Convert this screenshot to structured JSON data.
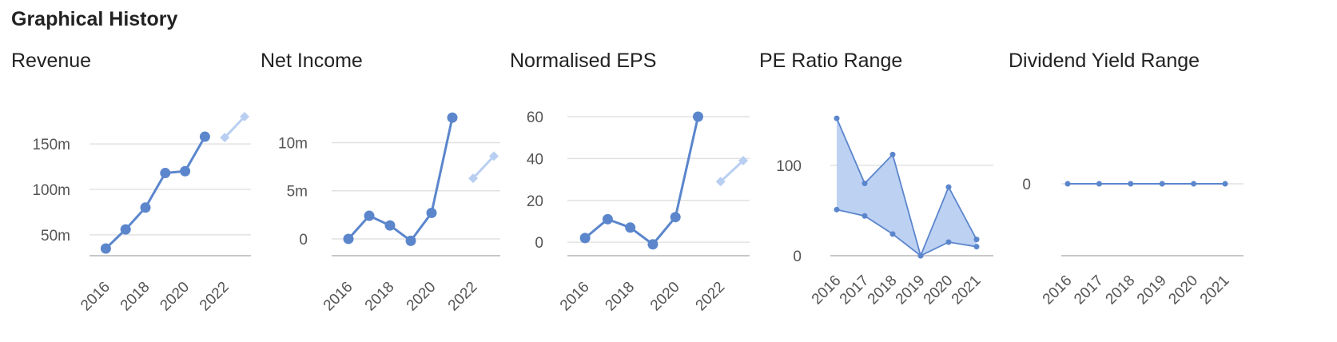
{
  "section_title": "Graphical History",
  "colors": {
    "series": "#5b86cc",
    "forecast": "#b9cff2",
    "area": "#b9cff2",
    "grid": "#e2e2e2",
    "axis": "#c8c8c8"
  },
  "chart_data": [
    {
      "type": "line",
      "title": "Revenue",
      "x_ticks": [
        "2016",
        "2018",
        "2020",
        "2022"
      ],
      "y_ticks": [
        {
          "value": 50,
          "label": "50m"
        },
        {
          "value": 100,
          "label": "100m"
        },
        {
          "value": 150,
          "label": "150m"
        }
      ],
      "ylim": [
        35,
        180
      ],
      "xlim": [
        2015.5,
        2023
      ],
      "series": [
        {
          "x": [
            2016,
            2017,
            2018,
            2019,
            2020,
            2021
          ],
          "values": [
            35,
            56,
            80,
            118,
            120,
            158
          ]
        }
      ],
      "forecast": {
        "x": [
          2022,
          2023
        ],
        "values": [
          157,
          180
        ]
      }
    },
    {
      "type": "line",
      "title": "Net Income",
      "x_ticks": [
        "2016",
        "2018",
        "2020",
        "2022"
      ],
      "y_ticks": [
        {
          "value": 0,
          "label": "0"
        },
        {
          "value": 5,
          "label": "5m"
        },
        {
          "value": 10,
          "label": "10m"
        }
      ],
      "ylim": [
        -1,
        12.7
      ],
      "xlim": [
        2015.5,
        2023
      ],
      "series": [
        {
          "x": [
            2016,
            2017,
            2018,
            2019,
            2020,
            2021
          ],
          "values": [
            0,
            2.4,
            1.4,
            -0.2,
            2.7,
            12.6
          ]
        }
      ],
      "forecast": {
        "x": [
          2022,
          2023
        ],
        "values": [
          6.3,
          8.6
        ]
      }
    },
    {
      "type": "line",
      "title": "Normalised EPS",
      "x_ticks": [
        "2016",
        "2018",
        "2020",
        "2022"
      ],
      "y_ticks": [
        {
          "value": 0,
          "label": "0"
        },
        {
          "value": 20,
          "label": "20"
        },
        {
          "value": 40,
          "label": "40"
        },
        {
          "value": 60,
          "label": "60"
        }
      ],
      "ylim": [
        -3,
        60
      ],
      "xlim": [
        2015.5,
        2023
      ],
      "series": [
        {
          "x": [
            2016,
            2017,
            2018,
            2019,
            2020,
            2021
          ],
          "values": [
            2,
            11,
            7,
            -1,
            12,
            60
          ]
        }
      ],
      "forecast": {
        "x": [
          2022,
          2023
        ],
        "values": [
          29,
          39
        ]
      }
    },
    {
      "type": "area",
      "title": "PE Ratio Range",
      "x_ticks": [
        "2016",
        "2017",
        "2018",
        "2019",
        "2020",
        "2021"
      ],
      "y_ticks": [
        {
          "value": 0,
          "label": "0"
        },
        {
          "value": 100,
          "label": "100"
        }
      ],
      "ylim": [
        0,
        153
      ],
      "xlim": [
        2016,
        2021
      ],
      "range": {
        "x": [
          2016,
          2017,
          2018,
          2019,
          2020,
          2021
        ],
        "high": [
          152,
          80,
          112,
          0,
          76,
          18
        ],
        "low": [
          51,
          44,
          24,
          0,
          15,
          10
        ]
      }
    },
    {
      "type": "line",
      "title": "Dividend Yield Range",
      "x_ticks": [
        "2016",
        "2017",
        "2018",
        "2019",
        "2020",
        "2021"
      ],
      "y_ticks": [
        {
          "value": 0,
          "label": "0"
        }
      ],
      "ylim": [
        -1,
        1
      ],
      "xlim": [
        2016,
        2021
      ],
      "series": [
        {
          "x": [
            2016,
            2017,
            2018,
            2019,
            2020,
            2021
          ],
          "values": [
            0,
            0,
            0,
            0,
            0,
            0
          ]
        }
      ]
    }
  ]
}
